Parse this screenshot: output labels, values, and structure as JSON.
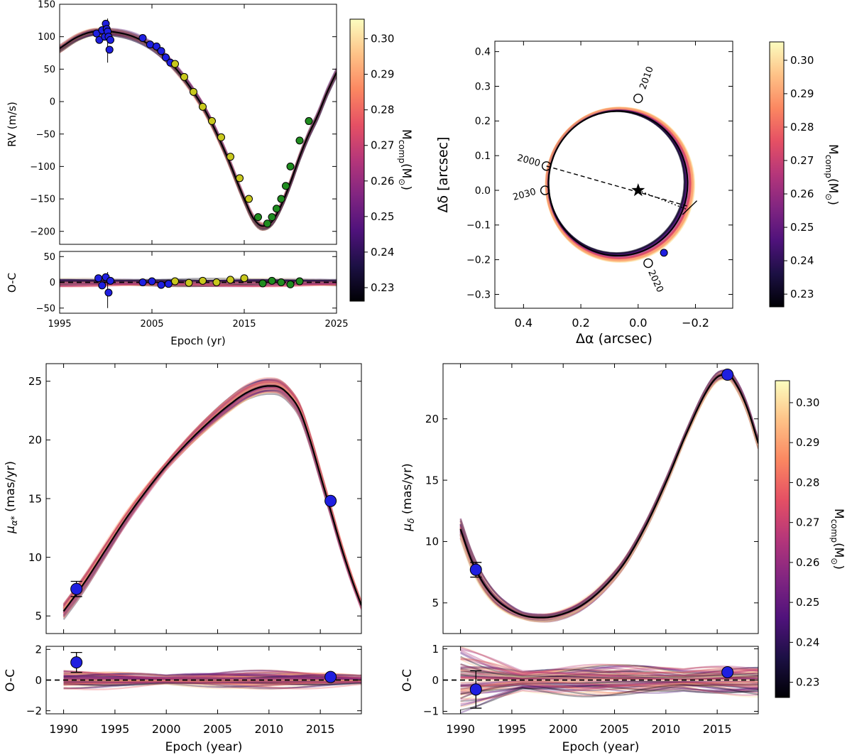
{
  "colorbar": {
    "label_main": "M",
    "label_sub": "comp",
    "label_unit": "(M",
    "label_sun": "⊙",
    "label_close": ")",
    "range": [
      0.2262,
      0.3055
    ],
    "ticks": [
      "0.23",
      "0.24",
      "0.25",
      "0.26",
      "0.27",
      "0.28",
      "0.29",
      "0.30"
    ],
    "tick_values": [
      0.23,
      0.24,
      0.25,
      0.26,
      0.27,
      0.28,
      0.29,
      0.3
    ],
    "colors": [
      "#000004",
      "#1c1044",
      "#4f127b",
      "#812581",
      "#b5367a",
      "#e55064",
      "#fb8761",
      "#fec287",
      "#fcfdbf"
    ]
  },
  "point_colors": {
    "blue": "#1f1fe0",
    "yellow": "#c8c81e",
    "green": "#1f8c1f",
    "black_marker": "#111111"
  },
  "chart_data": [
    {
      "id": "rv",
      "type": "line",
      "title": "",
      "xlabel": "Epoch (yr)",
      "ylabel": "RV (m/s)",
      "xlim": [
        1995,
        2025
      ],
      "ylim": [
        -220,
        150
      ],
      "xticks": [
        "1995",
        "2005",
        "2015",
        "2025"
      ],
      "xtick_values": [
        1995,
        2005,
        2015,
        2025
      ],
      "yticks": [
        "150",
        "100",
        "50",
        "0",
        "−50",
        "−100",
        "−150",
        "−200"
      ],
      "ytick_values": [
        150,
        100,
        50,
        0,
        -50,
        -100,
        -150,
        -200
      ],
      "model": {
        "x": [
          1995,
          1997,
          1999,
          2001,
          2003,
          2005,
          2007,
          2009,
          2011,
          2013,
          2015,
          2016,
          2017,
          2018,
          2019,
          2020,
          2021,
          2022,
          2023,
          2024,
          2025
        ],
        "y": [
          82,
          100,
          108,
          107,
          100,
          85,
          60,
          25,
          -20,
          -80,
          -150,
          -180,
          -192,
          -185,
          -160,
          -125,
          -85,
          -50,
          -20,
          15,
          45
        ]
      },
      "series": [
        {
          "name": "blue",
          "x": [
            1999.0,
            1999.3,
            1999.6,
            1999.9,
            2000.0,
            2000.1,
            2000.2,
            2000.3,
            2000.4,
            2000.5,
            2004.0,
            2004.8,
            2005.5,
            2006.0,
            2006.5,
            2007.0
          ],
          "y": [
            105,
            95,
            110,
            100,
            120,
            112,
            108,
            100,
            80,
            95,
            98,
            88,
            85,
            78,
            68,
            60
          ]
        },
        {
          "name": "yellow",
          "x": [
            2007.5,
            2008.5,
            2009.5,
            2010.5,
            2011.5,
            2012.5,
            2013.5,
            2014.5,
            2015.5
          ],
          "y": [
            58,
            38,
            15,
            -8,
            -30,
            -55,
            -85,
            -118,
            -150
          ]
        },
        {
          "name": "green",
          "x": [
            2016.5,
            2017.5,
            2018.0,
            2018.5,
            2019.0,
            2019.5,
            2020.0,
            2021.0,
            2022.0
          ],
          "y": [
            -178,
            -188,
            -178,
            -165,
            -150,
            -130,
            -100,
            -60,
            -30
          ]
        }
      ]
    },
    {
      "id": "rv_oc",
      "type": "scatter",
      "ylabel": "O-C",
      "xlim": [
        1995,
        2025
      ],
      "ylim": [
        -60,
        60
      ],
      "yticks": [
        "50",
        "0",
        "−50"
      ],
      "ytick_values": [
        50,
        0,
        -50
      ],
      "residuals": {
        "blue": {
          "x": [
            1999.2,
            1999.6,
            2000.0,
            2000.3,
            2000.5,
            2004.0,
            2005.0,
            2006.0,
            2006.8
          ],
          "y": [
            8,
            -6,
            10,
            -20,
            3,
            0,
            2,
            -5,
            -3
          ]
        },
        "yellow": {
          "x": [
            2007.5,
            2009.0,
            2010.5,
            2012.0,
            2013.5,
            2015.0
          ],
          "y": [
            2,
            -1,
            3,
            0,
            5,
            8
          ]
        },
        "green": {
          "x": [
            2017.0,
            2018.0,
            2019.0,
            2020.0,
            2021.0
          ],
          "y": [
            -2,
            3,
            0,
            -4,
            2
          ]
        }
      }
    },
    {
      "id": "astrometry",
      "type": "scatter",
      "xlabel": "Δα (arcsec)",
      "ylabel": "Δδ [arcsec]",
      "xlim": [
        0.5,
        -0.33
      ],
      "ylim": [
        -0.34,
        0.43
      ],
      "xticks": [
        "0.4",
        "0.2",
        "0.0",
        "−0.2"
      ],
      "xtick_values": [
        0.4,
        0.2,
        0.0,
        -0.2
      ],
      "yticks": [
        "0.4",
        "0.3",
        "0.2",
        "0.1",
        "0.0",
        "−0.1",
        "−0.2",
        "−0.3"
      ],
      "ytick_values": [
        0.4,
        0.3,
        0.2,
        0.1,
        0.0,
        -0.1,
        -0.2,
        -0.3
      ],
      "orbit": {
        "center": [
          0.07,
          0.02
        ],
        "radius": 0.245
      },
      "epoch_labels": [
        {
          "text": "2010",
          "x": 0.0,
          "y": 0.265
        },
        {
          "text": "2000",
          "x": 0.32,
          "y": 0.07
        },
        {
          "text": "2030",
          "x": 0.325,
          "y": 0.0
        },
        {
          "text": "2020",
          "x": -0.035,
          "y": -0.21
        }
      ],
      "star": {
        "x": 0.0,
        "y": 0.0
      },
      "observation": {
        "x": -0.09,
        "y": -0.18
      }
    },
    {
      "id": "pm_ra",
      "type": "line",
      "xlabel": "Epoch (year)",
      "ylabel": "μ",
      "ylabel_sub": "α*",
      "ylabel_unit": " (mas/yr)",
      "xlim": [
        1988.3,
        2019
      ],
      "ylim": [
        3.5,
        26.5
      ],
      "xticks": [
        "1990",
        "1995",
        "2000",
        "2005",
        "2010",
        "2015"
      ],
      "xtick_values": [
        1990,
        1995,
        2000,
        2005,
        2010,
        2015
      ],
      "yticks": [
        "25",
        "20",
        "15",
        "10",
        "5"
      ],
      "ytick_values": [
        25,
        20,
        15,
        10,
        5
      ],
      "model": {
        "x": [
          1990,
          1992,
          1994,
          1996,
          1998,
          2000,
          2002,
          2004,
          2006,
          2008,
          2010,
          2011,
          2012,
          2013,
          2014,
          2015,
          2016,
          2017,
          2018,
          2019
        ],
        "y": [
          5.4,
          7.8,
          10.5,
          13.2,
          15.6,
          17.8,
          19.7,
          21.4,
          22.9,
          24.1,
          24.6,
          24.5,
          23.8,
          22.5,
          20.0,
          17.0,
          14.0,
          11.0,
          8.3,
          5.9
        ]
      },
      "points": [
        {
          "x": 1991.25,
          "y": 7.3,
          "err": 0.65
        },
        {
          "x": 2016.0,
          "y": 14.8,
          "err": 0.0
        }
      ]
    },
    {
      "id": "pm_ra_oc",
      "type": "scatter",
      "ylabel": "O-C",
      "ylim": [
        -2.2,
        2.2
      ],
      "yticks": [
        "2",
        "0",
        "−2"
      ],
      "ytick_values": [
        2,
        0,
        -2
      ],
      "points": [
        {
          "x": 1991.25,
          "y": 1.15,
          "err": 0.65
        },
        {
          "x": 2016.0,
          "y": 0.2,
          "err": 0.0
        }
      ]
    },
    {
      "id": "pm_dec",
      "type": "line",
      "xlabel": "Epoch (year)",
      "ylabel": "μ",
      "ylabel_sub": "δ",
      "ylabel_unit": " (mas/yr)",
      "xlim": [
        1988.3,
        2019
      ],
      "ylim": [
        2.5,
        24.5
      ],
      "xticks": [
        "1990",
        "1995",
        "2000",
        "2005",
        "2010",
        "2015"
      ],
      "xtick_values": [
        1990,
        1995,
        2000,
        2005,
        2010,
        2015
      ],
      "yticks": [
        "20",
        "15",
        "10",
        "5"
      ],
      "ytick_values": [
        20,
        15,
        10,
        5
      ],
      "model": {
        "x": [
          1990,
          1991,
          1992,
          1993,
          1994,
          1996,
          1998,
          2000,
          2002,
          2004,
          2006,
          2008,
          2010,
          2012,
          2014,
          2015,
          2016,
          2017,
          2018,
          2019
        ],
        "y": [
          11.0,
          8.6,
          6.9,
          5.7,
          4.9,
          4.0,
          3.8,
          4.1,
          4.9,
          6.3,
          8.3,
          11.2,
          14.8,
          18.8,
          22.3,
          23.4,
          23.6,
          22.6,
          20.7,
          18.0
        ]
      },
      "points": [
        {
          "x": 1991.5,
          "y": 7.7,
          "err": 0.6
        },
        {
          "x": 2016.0,
          "y": 23.6,
          "err": 0.0
        }
      ]
    },
    {
      "id": "pm_dec_oc",
      "type": "scatter",
      "ylabel": "O-C",
      "ylim": [
        -1.08,
        1.08
      ],
      "yticks": [
        "1",
        "0",
        "−1"
      ],
      "ytick_values": [
        1,
        0,
        -1
      ],
      "points": [
        {
          "x": 1991.5,
          "y": -0.3,
          "err": 0.6
        },
        {
          "x": 2016.0,
          "y": 0.25,
          "err": 0.0
        }
      ]
    }
  ]
}
